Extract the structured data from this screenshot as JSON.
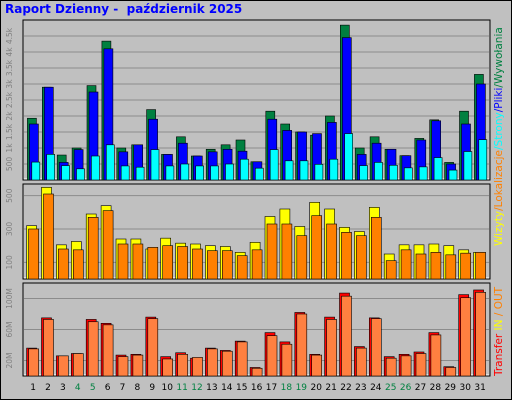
{
  "title": "Raport Dzienny -  październik 2025",
  "colors": {
    "wizyty": "#ffff00",
    "lokalizacje": "#ff8000",
    "strony": "#00ffff",
    "pliki": "#0000ff",
    "wywolania": "#008040",
    "in": "#ff0000",
    "out": "#ff8040",
    "weekend_label": "#008040",
    "panel_bg": "#c0c0c0",
    "plot_bg": "#c0c0c0"
  },
  "chart_data": [
    {
      "type": "bar",
      "categories": [
        "1",
        "2",
        "3",
        "4",
        "5",
        "6",
        "7",
        "8",
        "9",
        "10",
        "11",
        "12",
        "13",
        "14",
        "15",
        "16",
        "17",
        "18",
        "19",
        "20",
        "21",
        "22",
        "23",
        "24",
        "25",
        "26",
        "27",
        "28",
        "29",
        "30",
        "31"
      ],
      "weekend_days": [
        "4",
        "5",
        "11",
        "12",
        "18",
        "19",
        "25",
        "26"
      ],
      "ylim": [
        0,
        5000
      ],
      "yticks": [
        "500",
        "1k",
        "1.5k",
        "2k",
        "2.5k",
        "3k",
        "3.5k",
        "4k",
        "4.5k"
      ],
      "series": [
        {
          "name": "Wywołania",
          "values": [
            1930,
            2900,
            780,
            1000,
            2950,
            4340,
            1000,
            1100,
            2200,
            800,
            1350,
            750,
            960,
            1100,
            1250,
            570,
            2150,
            1750,
            1500,
            1400,
            2000,
            4840,
            1000,
            1350,
            960,
            760,
            1300,
            1880,
            550,
            2150,
            3300
          ]
        },
        {
          "name": "Pliki",
          "values": [
            1750,
            2900,
            550,
            950,
            2750,
            4100,
            880,
            1100,
            1900,
            800,
            1150,
            750,
            880,
            960,
            900,
            570,
            1900,
            1550,
            1500,
            1450,
            1800,
            4450,
            800,
            1150,
            960,
            760,
            1250,
            1850,
            500,
            1750,
            3000
          ]
        },
        {
          "name": "Strony",
          "values": [
            560,
            800,
            450,
            350,
            750,
            1100,
            440,
            400,
            950,
            440,
            500,
            440,
            440,
            500,
            650,
            370,
            950,
            600,
            600,
            490,
            650,
            1450,
            450,
            550,
            460,
            380,
            410,
            700,
            310,
            890,
            1260
          ]
        }
      ],
      "legend": [
        "Wizyty",
        "Lokalizacje",
        "Strony",
        "Pliki",
        "Wywołania"
      ]
    },
    {
      "type": "bar",
      "categories": [
        "1",
        "2",
        "3",
        "4",
        "5",
        "6",
        "7",
        "8",
        "9",
        "10",
        "11",
        "12",
        "13",
        "14",
        "15",
        "16",
        "17",
        "18",
        "19",
        "20",
        "21",
        "22",
        "23",
        "24",
        "25",
        "26",
        "27",
        "28",
        "29",
        "30",
        "31"
      ],
      "ylim": [
        0,
        570
      ],
      "yticks": [
        "100",
        "300",
        "500"
      ],
      "series": [
        {
          "name": "Wizyty",
          "values": [
            320,
            550,
            205,
            225,
            390,
            440,
            240,
            240,
            180,
            245,
            215,
            210,
            200,
            195,
            160,
            220,
            375,
            420,
            315,
            460,
            420,
            310,
            285,
            430,
            150,
            205,
            205,
            210,
            200,
            175,
            160
          ]
        },
        {
          "name": "Lokalizacje",
          "values": [
            300,
            510,
            180,
            175,
            370,
            410,
            210,
            210,
            190,
            200,
            195,
            180,
            170,
            170,
            140,
            175,
            330,
            330,
            260,
            380,
            330,
            280,
            260,
            370,
            110,
            175,
            150,
            160,
            145,
            155,
            160
          ]
        }
      ]
    },
    {
      "type": "bar",
      "categories": [
        "1",
        "2",
        "3",
        "4",
        "5",
        "6",
        "7",
        "8",
        "9",
        "10",
        "11",
        "12",
        "13",
        "14",
        "15",
        "16",
        "17",
        "18",
        "19",
        "20",
        "21",
        "22",
        "23",
        "24",
        "25",
        "26",
        "27",
        "28",
        "29",
        "30",
        "31"
      ],
      "ylim": [
        0,
        120
      ],
      "yticks": [
        "20M",
        "60M",
        "100M"
      ],
      "series": [
        {
          "name": "IN",
          "values": [
            36,
            75,
            26,
            29,
            73,
            68,
            27,
            28,
            76,
            25,
            30,
            23,
            36,
            33,
            45,
            11,
            56,
            44,
            82,
            28,
            76,
            107,
            38,
            75,
            25,
            28,
            31,
            56,
            12,
            105,
            111
          ]
        },
        {
          "name": "OUT",
          "values": [
            35,
            73,
            26,
            29,
            70,
            66,
            25,
            27,
            74,
            22,
            28,
            24,
            35,
            32,
            44,
            10,
            52,
            41,
            80,
            27,
            73,
            103,
            36,
            74,
            23,
            26,
            29,
            53,
            11,
            101,
            108
          ]
        }
      ],
      "legend": [
        "Transfer",
        "IN",
        "OUT"
      ]
    }
  ]
}
